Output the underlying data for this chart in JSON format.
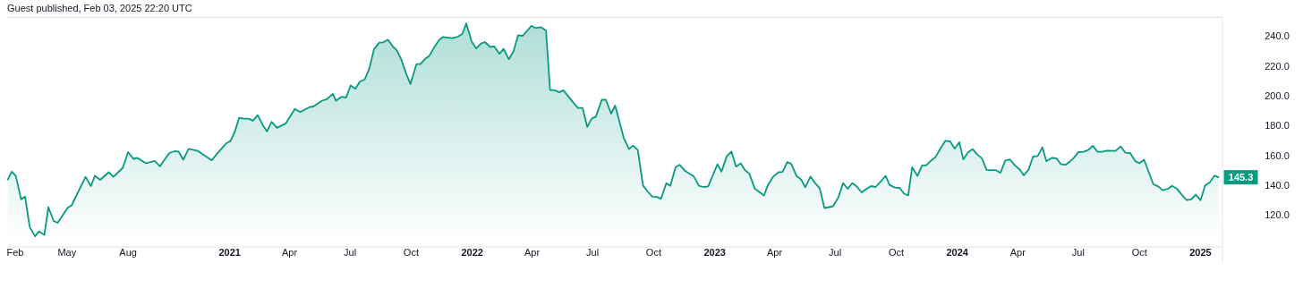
{
  "chart_data": {
    "type": "area",
    "annotations": [
      "Guest published, Feb 03, 2025 22:20 UTC",
      {
        "text": "145.3",
        "x": "2025-01-28",
        "y": 145.3
      }
    ],
    "x": [
      "2020-02-02",
      "2020-02-08",
      "2020-02-14",
      "2020-02-22",
      "2020-02-28",
      "2020-03-06",
      "2020-03-14",
      "2020-03-20",
      "2020-03-28",
      "2020-04-03",
      "2020-04-11",
      "2020-04-17",
      "2020-05-02",
      "2020-05-08",
      "2020-05-29",
      "2020-06-06",
      "2020-06-12",
      "2020-06-20",
      "2020-07-03",
      "2020-07-10",
      "2020-07-24",
      "2020-08-01",
      "2020-08-09",
      "2020-08-15",
      "2020-08-28",
      "2020-09-10",
      "2020-09-18",
      "2020-10-02",
      "2020-10-10",
      "2020-10-16",
      "2020-10-23",
      "2020-10-31",
      "2020-11-13",
      "2020-11-24",
      "2020-12-05",
      "2020-12-12",
      "2020-12-19",
      "2020-12-27",
      "2021-01-02",
      "2021-01-09",
      "2021-01-15",
      "2021-01-22",
      "2021-01-29",
      "2021-02-05",
      "2021-02-12",
      "2021-02-20",
      "2021-02-26",
      "2021-03-05",
      "2021-03-13",
      "2021-03-26",
      "2021-04-09",
      "2021-04-17",
      "2021-05-01",
      "2021-05-07",
      "2021-05-20",
      "2021-05-27",
      "2021-06-05",
      "2021-06-10",
      "2021-06-18",
      "2021-06-25",
      "2021-07-02",
      "2021-07-09",
      "2021-07-16",
      "2021-07-23",
      "2021-07-30",
      "2021-08-06",
      "2021-08-14",
      "2021-08-20",
      "2021-08-27",
      "2021-09-04",
      "2021-09-09",
      "2021-09-16",
      "2021-09-24",
      "2021-09-30",
      "2021-10-09",
      "2021-10-15",
      "2021-10-22",
      "2021-10-28",
      "2021-11-05",
      "2021-11-12",
      "2021-11-18",
      "2021-12-02",
      "2021-12-10",
      "2021-12-17",
      "2021-12-23",
      "2021-12-31",
      "2022-01-07",
      "2022-01-14",
      "2022-01-20",
      "2022-01-28",
      "2022-02-03",
      "2022-02-11",
      "2022-02-17",
      "2022-02-25",
      "2022-03-04",
      "2022-03-11",
      "2022-03-18",
      "2022-03-31",
      "2022-04-06",
      "2022-04-14",
      "2022-04-22",
      "2022-04-28",
      "2022-05-05",
      "2022-05-12",
      "2022-05-18",
      "2022-05-25",
      "2022-06-02",
      "2022-06-09",
      "2022-06-16",
      "2022-06-23",
      "2022-06-30",
      "2022-07-06",
      "2022-07-15",
      "2022-07-21",
      "2022-07-29",
      "2022-08-04",
      "2022-08-17",
      "2022-08-25",
      "2022-08-31",
      "2022-09-07",
      "2022-09-15",
      "2022-09-22",
      "2022-09-29",
      "2022-10-06",
      "2022-10-12",
      "2022-10-20",
      "2022-10-26",
      "2022-11-03",
      "2022-11-09",
      "2022-11-17",
      "2022-11-24",
      "2022-11-30",
      "2022-12-08",
      "2022-12-15",
      "2022-12-22",
      "2023-01-05",
      "2023-01-11",
      "2023-01-19",
      "2023-01-26",
      "2023-02-02",
      "2023-02-09",
      "2023-02-15",
      "2023-02-22",
      "2023-03-02",
      "2023-03-08",
      "2023-03-16",
      "2023-03-22",
      "2023-03-30",
      "2023-04-07",
      "2023-04-13",
      "2023-04-20",
      "2023-04-26",
      "2023-05-04",
      "2023-05-11",
      "2023-05-17",
      "2023-05-25",
      "2023-06-01",
      "2023-06-08",
      "2023-06-15",
      "2023-06-28",
      "2023-07-06",
      "2023-07-13",
      "2023-07-20",
      "2023-07-27",
      "2023-08-02",
      "2023-08-10",
      "2023-08-17",
      "2023-08-24",
      "2023-08-31",
      "2023-09-07",
      "2023-09-15",
      "2023-09-21",
      "2023-09-29",
      "2023-10-06",
      "2023-10-13",
      "2023-10-19",
      "2023-10-25",
      "2023-11-02",
      "2023-11-09",
      "2023-11-15",
      "2023-11-23",
      "2023-11-29",
      "2023-12-06",
      "2023-12-14",
      "2023-12-21",
      "2023-12-28",
      "2024-01-04",
      "2024-01-10",
      "2024-01-17",
      "2024-01-24",
      "2024-01-31",
      "2024-02-07",
      "2024-02-14",
      "2024-02-21",
      "2024-02-28",
      "2024-03-06",
      "2024-03-13",
      "2024-03-20",
      "2024-03-28",
      "2024-04-04",
      "2024-04-10",
      "2024-04-17",
      "2024-04-24",
      "2024-05-01",
      "2024-05-08",
      "2024-05-14",
      "2024-05-22",
      "2024-05-29",
      "2024-06-05",
      "2024-06-12",
      "2024-06-18",
      "2024-06-25",
      "2024-07-01",
      "2024-07-09",
      "2024-07-16",
      "2024-07-23",
      "2024-07-30",
      "2024-08-06",
      "2024-08-13",
      "2024-08-26",
      "2024-09-03",
      "2024-09-10",
      "2024-09-17",
      "2024-09-25",
      "2024-10-01",
      "2024-10-08",
      "2024-10-22",
      "2024-10-30",
      "2024-11-05",
      "2024-11-13",
      "2024-11-19",
      "2024-11-26",
      "2024-12-04",
      "2024-12-11",
      "2024-12-18",
      "2024-12-25",
      "2025-01-01",
      "2025-01-08",
      "2025-01-15",
      "2025-01-22",
      "2025-01-28"
    ],
    "series": [
      {
        "color": "#089981",
        "values": [
          143.8,
          149.1,
          146.2,
          130.5,
          132.3,
          112.0,
          105.7,
          109.0,
          106.7,
          125.3,
          116.0,
          114.8,
          124.9,
          126.5,
          145.6,
          139.4,
          146.3,
          143.6,
          148.7,
          145.6,
          151.7,
          162.2,
          157.7,
          158.3,
          154.7,
          156.3,
          152.7,
          161.6,
          162.8,
          162.6,
          157.1,
          164.4,
          163.2,
          160.0,
          156.7,
          160.6,
          164.2,
          168.2,
          169.6,
          176.3,
          185.2,
          184.6,
          184.6,
          183.3,
          187.0,
          180.1,
          176.1,
          182.5,
          178.5,
          181.3,
          191.2,
          189.0,
          192.4,
          192.8,
          196.7,
          197.7,
          201.3,
          196.7,
          199.3,
          198.7,
          206.9,
          204.7,
          209.6,
          210.8,
          218.2,
          231.1,
          235.6,
          235.8,
          237.6,
          232.7,
          230.7,
          224.5,
          214.2,
          207.9,
          221.2,
          221.2,
          224.7,
          226.5,
          232.7,
          237.4,
          239.4,
          238.6,
          239.6,
          241.4,
          248.5,
          236.4,
          231.7,
          235.0,
          236.0,
          232.7,
          233.1,
          228.1,
          231.5,
          224.5,
          229.7,
          240.6,
          240.2,
          246.9,
          245.4,
          246.0,
          243.8,
          203.9,
          203.7,
          202.3,
          203.7,
          199.9,
          195.4,
          191.8,
          191.8,
          179.1,
          184.8,
          186.0,
          197.3,
          197.3,
          188.0,
          193.4,
          171.6,
          164.2,
          166.6,
          163.6,
          139.8,
          135.8,
          132.3,
          132.1,
          130.9,
          141.4,
          139.6,
          152.1,
          153.7,
          149.7,
          147.7,
          146.2,
          139.6,
          138.8,
          139.2,
          154.1,
          149.1,
          159.4,
          162.6,
          152.5,
          154.7,
          150.3,
          147.7,
          137.8,
          135.8,
          133.1,
          140.2,
          145.8,
          148.7,
          148.9,
          155.5,
          154.3,
          146.2,
          143.8,
          138.6,
          145.8,
          141.4,
          137.8,
          124.7,
          125.9,
          131.9,
          141.4,
          137.6,
          141.4,
          139.4,
          135.2,
          137.4,
          139.4,
          138.8,
          142.2,
          146.3,
          140.2,
          138.4,
          138.2,
          134.3,
          133.1,
          152.1,
          146.2,
          153.3,
          153.3,
          156.7,
          158.7,
          164.2,
          169.8,
          169.4,
          164.6,
          168.8,
          157.3,
          162.0,
          164.2,
          160.6,
          158.1,
          150.3,
          150.1,
          150.1,
          148.3,
          156.5,
          157.3,
          153.1,
          150.5,
          146.6,
          150.3,
          159.2,
          159.6,
          165.4,
          156.1,
          158.3,
          158.1,
          154.1,
          153.7,
          155.7,
          158.7,
          162.2,
          162.4,
          163.6,
          166.4,
          162.4,
          162.4,
          163.2,
          163.0,
          166.0,
          161.8,
          161.6,
          156.1,
          154.7,
          157.1,
          140.6,
          139.0,
          136.6,
          137.6,
          139.6,
          137.8,
          133.5,
          130.1,
          130.5,
          133.7,
          129.9,
          139.8,
          142.0,
          146.4,
          145.3
        ]
      }
    ],
    "xlim": [
      "2020-02-01",
      "2025-02-03"
    ],
    "ylim": [
      101,
      251
    ],
    "yticks": [
      {
        "value": 120,
        "label": "120.0"
      },
      {
        "value": 140,
        "label": "140.0"
      },
      {
        "value": 160,
        "label": "160.0"
      },
      {
        "value": 180,
        "label": "180.0"
      },
      {
        "value": 200,
        "label": "200.0"
      },
      {
        "value": 220,
        "label": "220.0"
      },
      {
        "value": 240,
        "label": "240.0"
      }
    ],
    "xticks": [
      {
        "value": "2020-02-01",
        "label": "Feb"
      },
      {
        "value": "2020-05-01",
        "label": "May"
      },
      {
        "value": "2020-08-01",
        "label": "Aug"
      },
      {
        "value": "2021-01-01",
        "label": "2021"
      },
      {
        "value": "2021-04-01",
        "label": "Apr"
      },
      {
        "value": "2021-07-01",
        "label": "Jul"
      },
      {
        "value": "2021-10-01",
        "label": "Oct"
      },
      {
        "value": "2022-01-01",
        "label": "2022"
      },
      {
        "value": "2022-04-01",
        "label": "Apr"
      },
      {
        "value": "2022-07-01",
        "label": "Jul"
      },
      {
        "value": "2022-10-01",
        "label": "Oct"
      },
      {
        "value": "2023-01-01",
        "label": "2023"
      },
      {
        "value": "2023-04-01",
        "label": "Apr"
      },
      {
        "value": "2023-07-01",
        "label": "Jul"
      },
      {
        "value": "2023-10-01",
        "label": "Oct"
      },
      {
        "value": "2024-01-01",
        "label": "2024"
      },
      {
        "value": "2024-04-01",
        "label": "Apr"
      },
      {
        "value": "2024-07-01",
        "label": "Jul"
      },
      {
        "value": "2024-10-01",
        "label": "Oct"
      },
      {
        "value": "2025-01-01",
        "label": "2025"
      }
    ],
    "marker": "none",
    "line_style": "solid"
  }
}
